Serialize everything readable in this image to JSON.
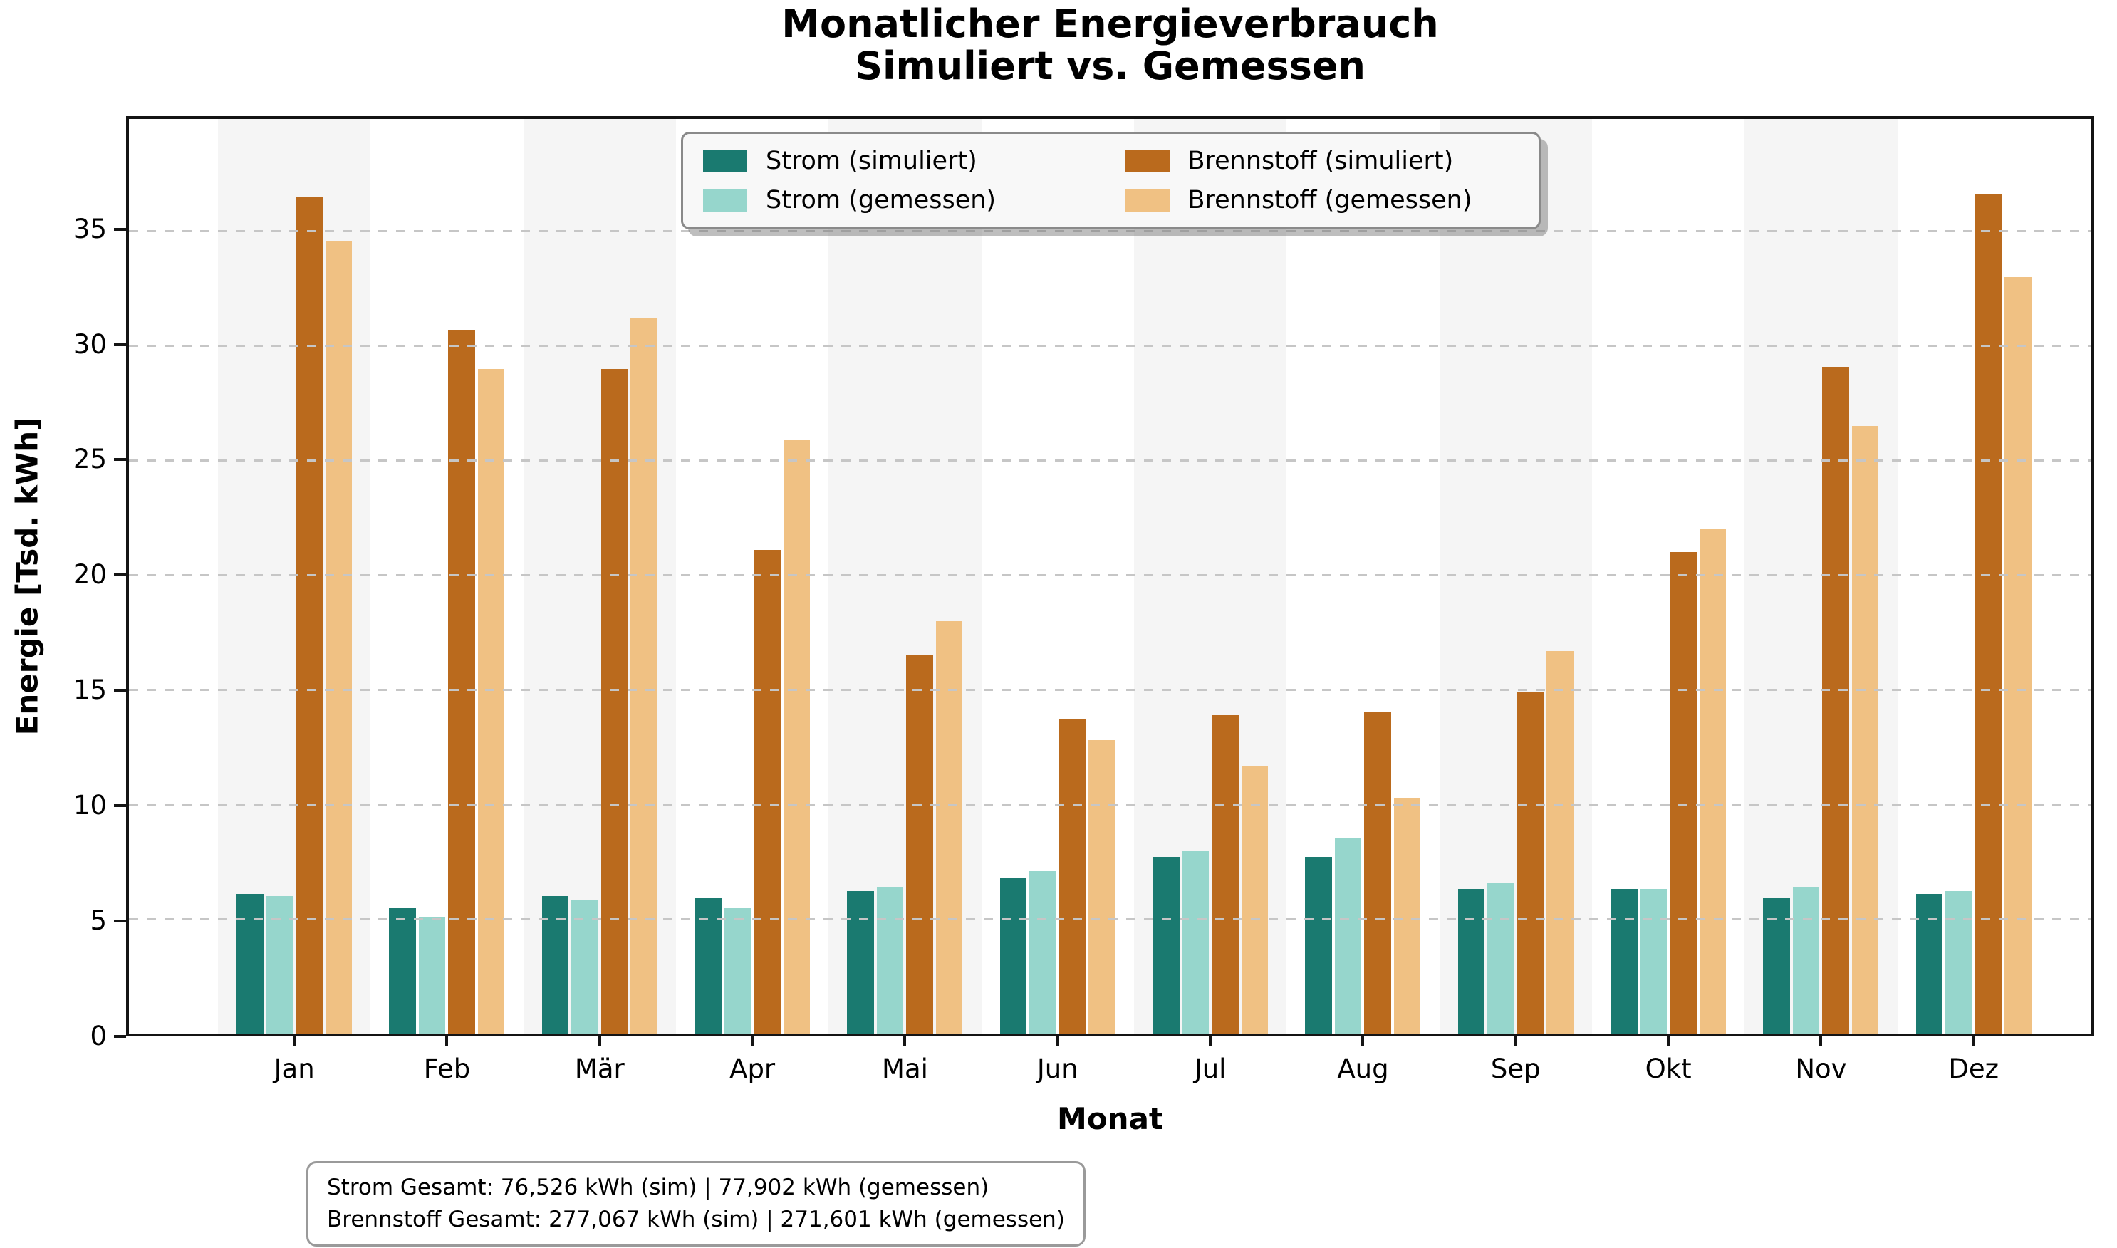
{
  "figure": {
    "title_line1": "Monatlicher Energieverbrauch",
    "title_line2": "Simuliert vs. Gemessen"
  },
  "axes": {
    "x_label": "Monat",
    "y_label": "Energie [Tsd. kWh]",
    "y_ticks": [
      0,
      5,
      10,
      15,
      20,
      25,
      30,
      35
    ],
    "y_max": 39.9
  },
  "legend": {
    "items": [
      {
        "label": "Strom (simuliert)",
        "color": "#1a7a70"
      },
      {
        "label": "Strom (gemessen)",
        "color": "#96d6cc"
      },
      {
        "label": "Brennstoff (simuliert)",
        "color": "#ba6a1d"
      },
      {
        "label": "Brennstoff (gemessen)",
        "color": "#f0c183"
      }
    ]
  },
  "summary_box": {
    "line1": "Strom Gesamt: 76,526 kWh (sim) | 77,902 kWh (gemessen)",
    "line2": "Brennstoff Gesamt: 277,067 kWh (sim) | 271,601 kWh (gemessen)"
  },
  "chart_data": {
    "type": "bar",
    "title": "Monatlicher Energieverbrauch — Simuliert vs. Gemessen",
    "xlabel": "Monat",
    "ylabel": "Energie [Tsd. kWh]",
    "units": "Tsd. kWh",
    "categories": [
      "Jan",
      "Feb",
      "Mär",
      "Apr",
      "Mai",
      "Jun",
      "Jul",
      "Aug",
      "Sep",
      "Okt",
      "Nov",
      "Dez"
    ],
    "series": [
      {
        "name": "Strom (simuliert)",
        "color": "#1a7a70",
        "values": [
          6.1,
          5.5,
          6.0,
          5.9,
          6.2,
          6.8,
          7.7,
          7.7,
          6.3,
          6.3,
          5.9,
          6.1
        ]
      },
      {
        "name": "Strom (gemessen)",
        "color": "#96d6cc",
        "values": [
          6.0,
          5.1,
          5.8,
          5.5,
          6.4,
          7.1,
          8.0,
          8.5,
          6.6,
          6.3,
          6.4,
          6.2
        ]
      },
      {
        "name": "Brennstoff (simuliert)",
        "color": "#ba6a1d",
        "values": [
          36.5,
          30.7,
          29.0,
          21.1,
          16.5,
          13.7,
          13.9,
          14.0,
          14.9,
          21.0,
          29.1,
          36.6
        ]
      },
      {
        "name": "Brennstoff (gemessen)",
        "color": "#f0c183",
        "values": [
          34.6,
          29.0,
          31.2,
          25.9,
          18.0,
          12.8,
          11.7,
          10.3,
          16.7,
          22.0,
          26.5,
          33.0
        ]
      }
    ],
    "ylim": [
      0,
      39.9
    ],
    "grid": "horizontal dashed gridlines every 5 units, drawn above the bars",
    "legend_position": "upper center, 2 columns, framed with shadow",
    "background_bands": "alternating light-gray vertical bands on Jan, Mär, Mai, Jul, Sep, Nov",
    "totals": {
      "strom_sim_kwh": "76,526",
      "strom_gemessen_kwh": "77,902",
      "brennstoff_sim_kwh": "277,067",
      "brennstoff_gemessen_kwh": "271,601"
    }
  },
  "colors": {
    "band": "#f5f5f5",
    "gridline": "#c6c6c6",
    "spine": "#141414",
    "legend_bg": "#f8f8f8",
    "legend_border": "#8a8a8a",
    "box_border": "#9a9a9a"
  }
}
